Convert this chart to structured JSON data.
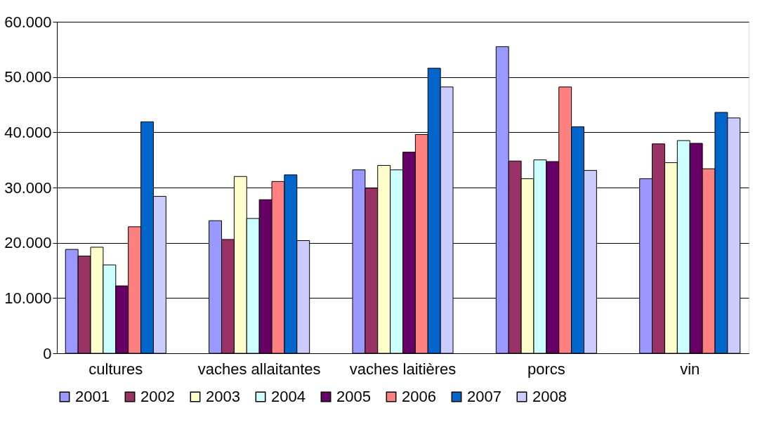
{
  "chart_data": {
    "type": "bar",
    "categories": [
      "cultures",
      "vaches allaitantes",
      "vaches laitières",
      "porcs",
      "vin"
    ],
    "series": [
      {
        "name": "2001",
        "color": "#9999ff",
        "values": [
          18800,
          24000,
          33200,
          55500,
          31600
        ]
      },
      {
        "name": "2002",
        "color": "#993366",
        "values": [
          17600,
          20600,
          29900,
          34800,
          37900
        ]
      },
      {
        "name": "2003",
        "color": "#ffffcc",
        "values": [
          19200,
          32000,
          34000,
          31600,
          34500
        ]
      },
      {
        "name": "2004",
        "color": "#ccffff",
        "values": [
          16000,
          24400,
          33200,
          35000,
          38500
        ]
      },
      {
        "name": "2005",
        "color": "#660066",
        "values": [
          12200,
          27800,
          36400,
          34700,
          38000
        ]
      },
      {
        "name": "2006",
        "color": "#ff8080",
        "values": [
          22900,
          31100,
          39600,
          48200,
          33400
        ]
      },
      {
        "name": "2007",
        "color": "#0066cc",
        "values": [
          41900,
          32300,
          51600,
          41000,
          43600
        ]
      },
      {
        "name": "2008",
        "color": "#ccccff",
        "values": [
          28400,
          20400,
          48200,
          33100,
          42600
        ]
      }
    ],
    "ylim": [
      0,
      60000
    ],
    "yticks": [
      {
        "value": 0,
        "label": "0"
      },
      {
        "value": 10000,
        "label": "10.000"
      },
      {
        "value": 20000,
        "label": "20.000"
      },
      {
        "value": 30000,
        "label": "30.000"
      },
      {
        "value": 40000,
        "label": "40.000"
      },
      {
        "value": 50000,
        "label": "50.000"
      },
      {
        "value": 60000,
        "label": "60.000"
      }
    ],
    "grid": "y",
    "legend": "bottom"
  }
}
